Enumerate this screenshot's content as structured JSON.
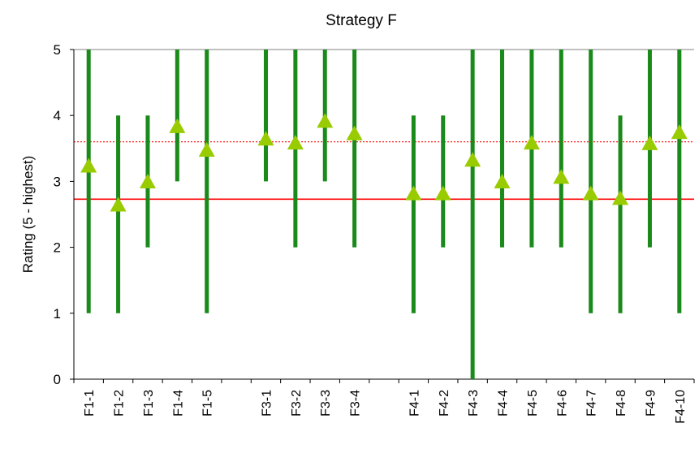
{
  "chart_data": {
    "type": "scatter",
    "title": "Strategy F",
    "ylabel": "Rating (5 - highest)",
    "xlabel": "",
    "ylim": [
      0,
      5
    ],
    "yticks": [
      0,
      1,
      2,
      3,
      4,
      5
    ],
    "grid": "horizontal line at y=5 only",
    "legend": "none",
    "categories": [
      "F1-1",
      "F1-2",
      "F1-3",
      "F1-4",
      "F1-5",
      "",
      "F3-1",
      "F3-2",
      "F3-3",
      "F3-4",
      "",
      "F4-1",
      "F4-2",
      "F4-3",
      "F4-4",
      "F4-5",
      "F4-6",
      "F4-7",
      "F4-8",
      "F4-9",
      "F4-10"
    ],
    "series": [
      {
        "kind": "range-bar",
        "color": "#1a8a1a",
        "min": [
          1,
          1,
          2,
          3,
          1,
          null,
          3,
          2,
          3,
          2,
          null,
          1,
          2,
          0,
          2,
          2,
          2,
          1,
          1,
          2,
          1
        ],
        "max": [
          5,
          4,
          4,
          5,
          5,
          null,
          5,
          5,
          5,
          5,
          null,
          4,
          4,
          5,
          5,
          5,
          5,
          5,
          4,
          5,
          5
        ]
      },
      {
        "kind": "mean-marker",
        "marker": "triangle",
        "color": "#99cc00",
        "values": [
          3.22,
          2.63,
          2.98,
          3.82,
          3.46,
          null,
          3.63,
          3.57,
          3.9,
          3.71,
          null,
          2.8,
          2.8,
          3.31,
          2.98,
          3.57,
          3.05,
          2.8,
          2.73,
          3.56,
          3.73
        ]
      }
    ],
    "reference_lines": [
      {
        "value": 2.73,
        "color": "#ff0000",
        "style": "solid"
      },
      {
        "value": 3.6,
        "color": "#ff0000",
        "style": "dotted"
      }
    ]
  }
}
